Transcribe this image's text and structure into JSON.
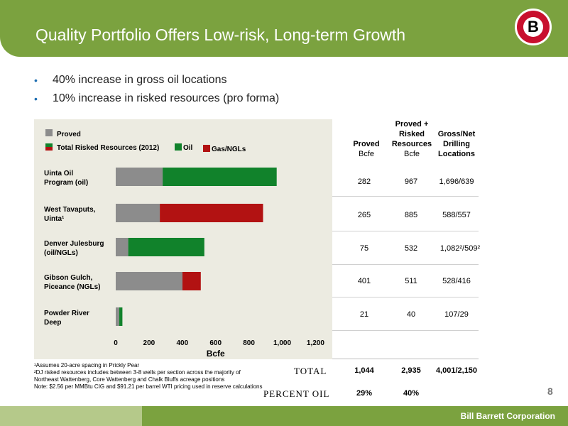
{
  "header": {
    "title": "Quality Portfolio Offers Low-risk, Long-term Growth",
    "logo_letter": "B"
  },
  "bullets": [
    "40% increase in gross oil locations",
    "10% increase in risked resources (pro forma)"
  ],
  "legend": {
    "proved": "Proved",
    "risked": "Total Risked Resources (2012)",
    "oil": "Oil",
    "gas": "Gas/NGLs"
  },
  "colors": {
    "proved": "#8c8c8c",
    "oil": "#11822b",
    "gas": "#b21212",
    "header": "#7ba23f"
  },
  "chart_data": {
    "type": "bar",
    "orientation": "horizontal",
    "stacked": true,
    "xlabel": "Bcfe",
    "xlim": [
      0,
      1200
    ],
    "xticks": [
      "0",
      "200",
      "400",
      "600",
      "800",
      "1,000",
      "1,200"
    ],
    "categories": [
      [
        "Uinta Oil",
        "Program (oil)"
      ],
      [
        "West Tavaputs,",
        "Uinta¹"
      ],
      [
        "Denver Julesburg",
        "(oil/NGLs)"
      ],
      [
        "Gibson Gulch,",
        "Piceance (NGLs)"
      ],
      [
        "Powder River",
        "Deep"
      ]
    ],
    "series": [
      {
        "name": "Proved",
        "values": [
          282,
          265,
          75,
          401,
          21
        ]
      },
      {
        "name": "Oil",
        "values": [
          685,
          0,
          457,
          0,
          19
        ]
      },
      {
        "name": "Gas/NGLs",
        "values": [
          0,
          620,
          0,
          110,
          0
        ]
      }
    ],
    "legend_position": "top"
  },
  "table": {
    "headers": [
      {
        "line1": "",
        "line2": "Proved",
        "unit": "Bcfe"
      },
      {
        "line1": "Proved +",
        "line2": "Risked",
        "line3": "Resources",
        "unit": "Bcfe"
      },
      {
        "line1": "Gross/Net",
        "line2": "Drilling",
        "line3": "Locations",
        "unit": ""
      }
    ],
    "rows": [
      [
        "282",
        "967",
        "1,696/639"
      ],
      [
        "265",
        "885",
        "588/557"
      ],
      [
        "75",
        "532",
        "1,082²/509²"
      ],
      [
        "401",
        "511",
        "528/416"
      ],
      [
        "21",
        "40",
        "107/29"
      ]
    ],
    "total_label": "TOTAL",
    "total": [
      "1,044",
      "2,935",
      "4,001/2,150"
    ],
    "percent_label": "PERCENT OIL",
    "percent": [
      "29%",
      "40%",
      ""
    ]
  },
  "footnotes": [
    "¹Assumes 20-acre spacing in Prickly Pear",
    "²DJ risked resources includes between 3-8 wells per section across the majority of Northeast Wattenberg, Core Wattenberg and Chalk Bluffs acreage positions",
    "Note: $2.56 per MMBtu CIG and $91.21 per barrel WTI pricing used in reserve calculations"
  ],
  "page_number": "8",
  "footer": {
    "brand": "Bill Barrett Corporation"
  }
}
